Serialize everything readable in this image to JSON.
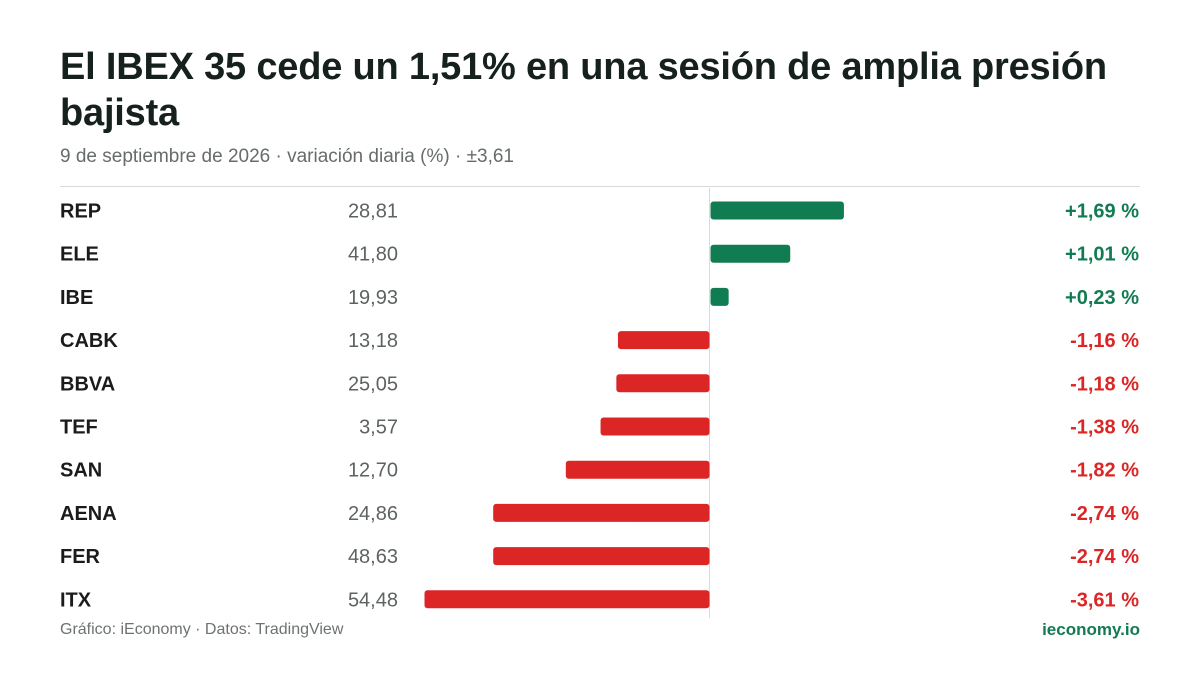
{
  "title": "El IBEX 35 cede un 1,51% en una sesión de amplia presión bajista",
  "subtitle": "9 de septiembre de 2026 · variación diaria (%) · ±3,61",
  "footer": {
    "source": "Gráfico: iEconomy · Datos: TradingView",
    "brand": "ieconomy.io"
  },
  "colors": {
    "positive": "#117c52",
    "negative": "#dc2626",
    "axis": "#d9dbda"
  },
  "chart_data": {
    "type": "bar",
    "orientation": "horizontal",
    "title": "El IBEX 35 cede un 1,51% en una sesión de amplia presión bajista",
    "subtitle": "9 de septiembre de 2026 · variación diaria (%) · ±3,61",
    "xlim": [
      -3.61,
      3.61
    ],
    "categories": [
      "REP",
      "ELE",
      "IBE",
      "CABK",
      "BBVA",
      "TEF",
      "SAN",
      "AENA",
      "FER",
      "ITX"
    ],
    "prices": [
      "28,81",
      "41,80",
      "19,93",
      "13,18",
      "25,05",
      "3,57",
      "12,70",
      "24,86",
      "48,63",
      "54,48"
    ],
    "values": [
      1.69,
      1.01,
      0.23,
      -1.16,
      -1.18,
      -1.38,
      -1.82,
      -2.74,
      -2.74,
      -3.61
    ],
    "value_labels": [
      "+1,69 %",
      "+1,01 %",
      "+0,23 %",
      "-1,16 %",
      "-1,18 %",
      "-1,38 %",
      "-1,82 %",
      "-2,74 %",
      "-2,74 %",
      "-3,61 %"
    ],
    "grid": false
  }
}
